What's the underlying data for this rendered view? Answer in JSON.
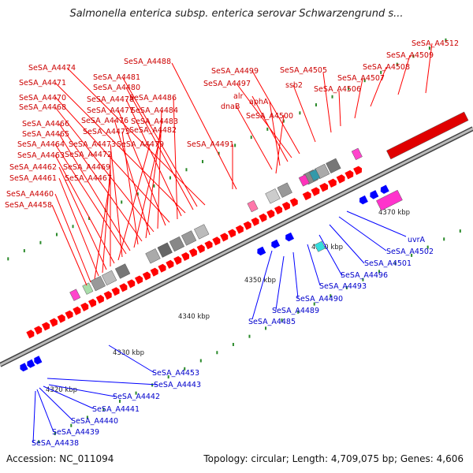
{
  "title": "Salmonella enterica subsp. enterica serovar Schwarzengrund s...",
  "footer": {
    "accession": "Accession: NC_011094",
    "topology": "Topology: circular; Length: 4,709,075 bp; Genes: 4,606"
  },
  "ticks": [
    "4320 kbp",
    "4330 kbp",
    "4340 kbp",
    "4350 kbp",
    "4360 kbp",
    "4370 kbp"
  ],
  "colors": {
    "forward": "#ff0000",
    "reverse": "#0000ff",
    "backbone": "#999999",
    "forward_label": "#cc0000",
    "reverse_label": "#0000cc"
  },
  "upper_labels": [
    "SeSA_A4512",
    "SeSA_A4509",
    "SeSA_A4508",
    "SeSA_A4507",
    "SeSA_A4506",
    "SeSA_A4505",
    "ssb2",
    "SeSA_A4499",
    "SeSA_A4497",
    "alr",
    "aphA",
    "dnaB",
    "SeSA_A4500",
    "SeSA_A4488",
    "SeSA_A4474",
    "SeSA_A4481",
    "SeSA_A4480",
    "SeSA_A4471",
    "SeSA_A4478",
    "SeSA_A4486",
    "SeSA_A4470",
    "SeSA_A4477",
    "SeSA_A4484",
    "SeSA_A4468",
    "SeSA_A4476",
    "SeSA_A4483",
    "SeSA_A4466",
    "SeSA_A4475",
    "SeSA_A4482",
    "SeSA_A4465",
    "SeSA_A4464",
    "SeSA_A4473",
    "SeSA_A4479",
    "SeSA_A4491",
    "SeSA_A4463",
    "SeSA_A4472",
    "SeSA_A4462",
    "SeSA_A4469",
    "SeSA_A4461",
    "SeSA_A4467",
    "SeSA_A4460",
    "SeSA_A4458"
  ],
  "lower_labels": [
    "uvrA",
    "SeSA_A4502",
    "SeSA_A4501",
    "SeSA_A4496",
    "SeSA_A4493",
    "SeSA_A4490",
    "SeSA_A4489",
    "SeSA_A4485",
    "SeSA_A4453",
    "SeSA_A4443",
    "SeSA_A4442",
    "SeSA_A4441",
    "SeSA_A4440",
    "SeSA_A4439",
    "SeSA_A4438"
  ]
}
